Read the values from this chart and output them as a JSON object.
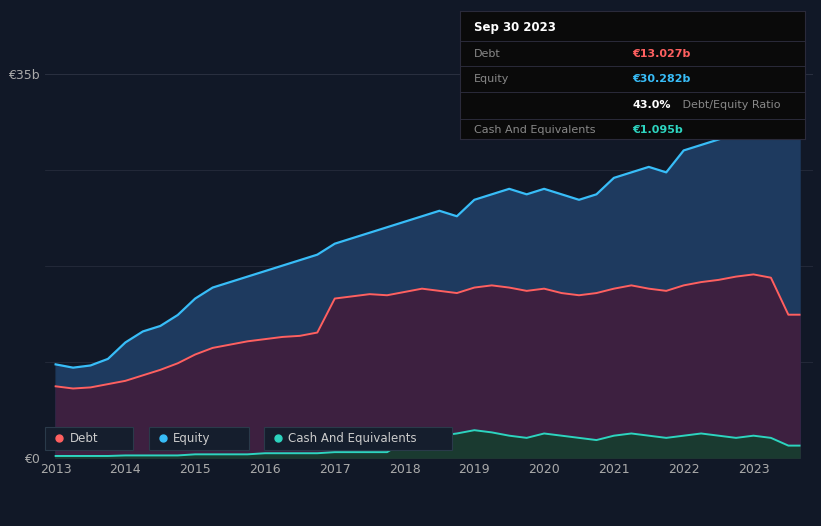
{
  "background_color": "#111827",
  "plot_bg_color": "#111827",
  "tooltip": {
    "date": "Sep 30 2023",
    "debt_label": "Debt",
    "debt_value": "€13.027b",
    "equity_label": "Equity",
    "equity_value": "€30.282b",
    "ratio_pct": "43.0%",
    "ratio_label": " Debt/Equity Ratio",
    "cash_label": "Cash And Equivalents",
    "cash_value": "€1.095b"
  },
  "years": [
    2013.0,
    2013.25,
    2013.5,
    2013.75,
    2014.0,
    2014.25,
    2014.5,
    2014.75,
    2015.0,
    2015.25,
    2015.5,
    2015.75,
    2016.0,
    2016.25,
    2016.5,
    2016.75,
    2017.0,
    2017.25,
    2017.5,
    2017.75,
    2018.0,
    2018.25,
    2018.5,
    2018.75,
    2019.0,
    2019.25,
    2019.5,
    2019.75,
    2020.0,
    2020.25,
    2020.5,
    2020.75,
    2021.0,
    2021.25,
    2021.5,
    2021.75,
    2022.0,
    2022.25,
    2022.5,
    2022.75,
    2023.0,
    2023.25,
    2023.5,
    2023.66
  ],
  "debt": [
    6.5,
    6.3,
    6.4,
    6.7,
    7.0,
    7.5,
    8.0,
    8.6,
    9.4,
    10.0,
    10.3,
    10.6,
    10.8,
    11.0,
    11.1,
    11.4,
    14.5,
    14.7,
    14.9,
    14.8,
    15.1,
    15.4,
    15.2,
    15.0,
    15.5,
    15.7,
    15.5,
    15.2,
    15.4,
    15.0,
    14.8,
    15.0,
    15.4,
    15.7,
    15.4,
    15.2,
    15.7,
    16.0,
    16.2,
    16.5,
    16.7,
    16.4,
    13.027,
    13.027
  ],
  "equity": [
    8.5,
    8.2,
    8.4,
    9.0,
    10.5,
    11.5,
    12.0,
    13.0,
    14.5,
    15.5,
    16.0,
    16.5,
    17.0,
    17.5,
    18.0,
    18.5,
    19.5,
    20.0,
    20.5,
    21.0,
    21.5,
    22.0,
    22.5,
    22.0,
    23.5,
    24.0,
    24.5,
    24.0,
    24.5,
    24.0,
    23.5,
    24.0,
    25.5,
    26.0,
    26.5,
    26.0,
    28.0,
    28.5,
    29.0,
    29.5,
    32.5,
    33.8,
    30.282,
    30.282
  ],
  "cash": [
    0.15,
    0.15,
    0.15,
    0.15,
    0.2,
    0.2,
    0.2,
    0.2,
    0.3,
    0.3,
    0.3,
    0.3,
    0.4,
    0.4,
    0.4,
    0.4,
    0.5,
    0.5,
    0.5,
    0.5,
    1.5,
    1.8,
    2.0,
    2.2,
    2.5,
    2.3,
    2.0,
    1.8,
    2.2,
    2.0,
    1.8,
    1.6,
    2.0,
    2.2,
    2.0,
    1.8,
    2.0,
    2.2,
    2.0,
    1.8,
    2.0,
    1.8,
    1.095,
    1.095
  ],
  "debt_color": "#ff6060",
  "equity_color": "#38bdf8",
  "cash_color": "#2dd4bf",
  "equity_fill_color": "#1e3a5f",
  "debt_fill_color": "#3d2040",
  "cash_fill_color": "#1a3a30",
  "ylim": [
    0,
    35
  ],
  "xlim": [
    2012.85,
    2023.85
  ],
  "xtick_years": [
    2013,
    2014,
    2015,
    2016,
    2017,
    2018,
    2019,
    2020,
    2021,
    2022,
    2023
  ],
  "grid_color": "#2a3040",
  "legend_entries": [
    "Debt",
    "Equity",
    "Cash And Equivalents"
  ]
}
